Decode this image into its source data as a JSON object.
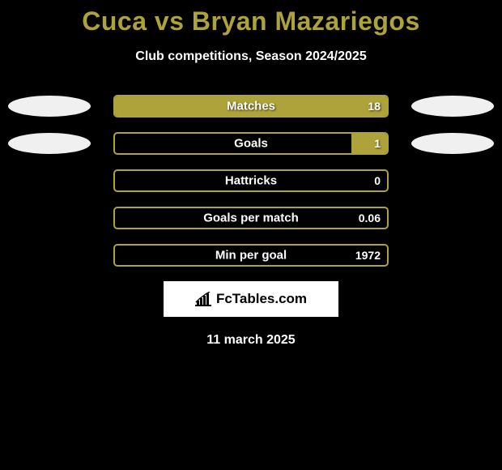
{
  "title_color": "#ada33a",
  "subtitle_color": "#ffffff",
  "background_color": "#000000",
  "title": "Cuca vs Bryan Mazariegos",
  "subtitle": "Club competitions, Season 2024/2025",
  "date": "11 march 2025",
  "left_oval_color": "#f0f0f0",
  "right_oval_color": "#f0f0f0",
  "bar_border_color": "#ada33a",
  "bar_fill_color": "#ada33a",
  "brand_logo_text": "FcTables.com",
  "stats": [
    {
      "label": "Matches",
      "left_value": "",
      "right_value": "18",
      "left_fill_pct": 0,
      "right_fill_pct": 100,
      "show_ovals": true
    },
    {
      "label": "Goals",
      "left_value": "",
      "right_value": "1",
      "left_fill_pct": 0,
      "right_fill_pct": 13,
      "show_ovals": true
    },
    {
      "label": "Hattricks",
      "left_value": "",
      "right_value": "0",
      "left_fill_pct": 0,
      "right_fill_pct": 0,
      "show_ovals": false
    },
    {
      "label": "Goals per match",
      "left_value": "",
      "right_value": "0.06",
      "left_fill_pct": 0,
      "right_fill_pct": 0,
      "show_ovals": false
    },
    {
      "label": "Min per goal",
      "left_value": "",
      "right_value": "1972",
      "left_fill_pct": 0,
      "right_fill_pct": 0,
      "show_ovals": false
    }
  ]
}
